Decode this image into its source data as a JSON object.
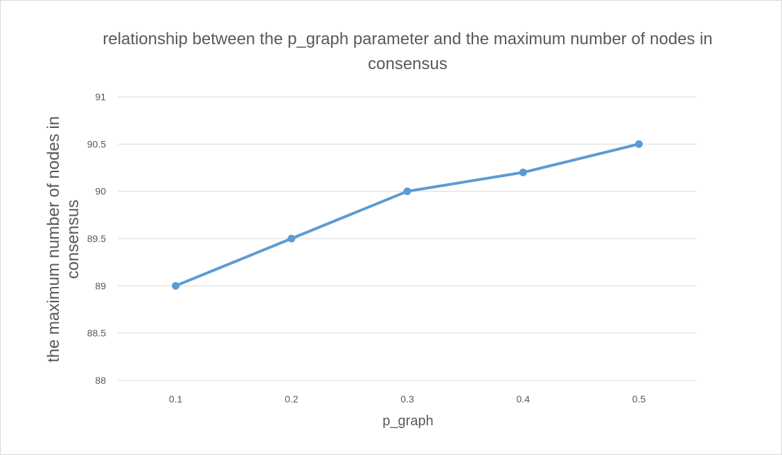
{
  "chart_data": {
    "type": "line",
    "title": "relationship between the p_graph parameter and the maximum number of nodes in consensus",
    "xlabel": "p_graph",
    "ylabel": "the maximum number of nodes in consensus",
    "categories": [
      "0.1",
      "0.2",
      "0.3",
      "0.4",
      "0.5"
    ],
    "series": [
      {
        "values": [
          89,
          89.5,
          90,
          90.2,
          90.5
        ],
        "color": "#5b9bd5"
      }
    ],
    "ylim": [
      88,
      91
    ],
    "yticks": [
      "88",
      "88.5",
      "89",
      "89.5",
      "90",
      "90.5",
      "91"
    ],
    "grid": true,
    "legend": "none"
  }
}
